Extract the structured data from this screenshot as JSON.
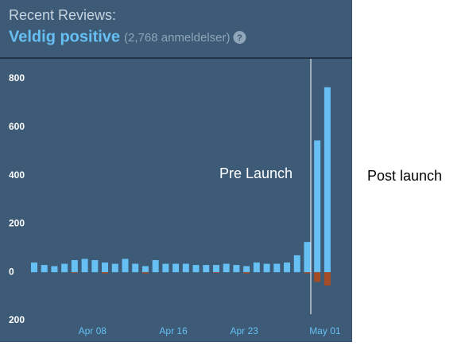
{
  "chart_data": {
    "type": "bar",
    "title": "Recent Reviews:",
    "rating": "Veldig positive",
    "review_count": "(2,768 anmeldelser)",
    "help_icon": "?",
    "annotations": [
      "Pre Launch",
      "Post launch"
    ],
    "categories": [
      null,
      null,
      null,
      null,
      null,
      null,
      "Apr 08",
      null,
      null,
      null,
      null,
      null,
      null,
      null,
      "Apr 16",
      null,
      null,
      null,
      null,
      null,
      null,
      "Apr 23",
      null,
      null,
      null,
      null,
      null,
      null,
      null,
      "May 01"
    ],
    "series": [
      {
        "color": "#66c0f4",
        "values": [
          40,
          30,
          25,
          35,
          50,
          55,
          50,
          40,
          35,
          55,
          35,
          25,
          50,
          35,
          35,
          35,
          30,
          30,
          30,
          35,
          30,
          25,
          40,
          35,
          35,
          40,
          70,
          125,
          545,
          765
        ]
      },
      {
        "color": "#a34c25",
        "values": [
          0,
          0,
          0,
          0,
          -3,
          0,
          0,
          -5,
          0,
          0,
          0,
          -5,
          0,
          0,
          0,
          0,
          0,
          0,
          -3,
          0,
          0,
          -5,
          0,
          0,
          0,
          0,
          0,
          -5,
          -40,
          -55
        ]
      }
    ],
    "ylim": [
      -200,
      800
    ],
    "yticks": [
      {
        "value": -200,
        "label": "200"
      },
      0,
      200,
      400,
      600,
      800
    ]
  }
}
